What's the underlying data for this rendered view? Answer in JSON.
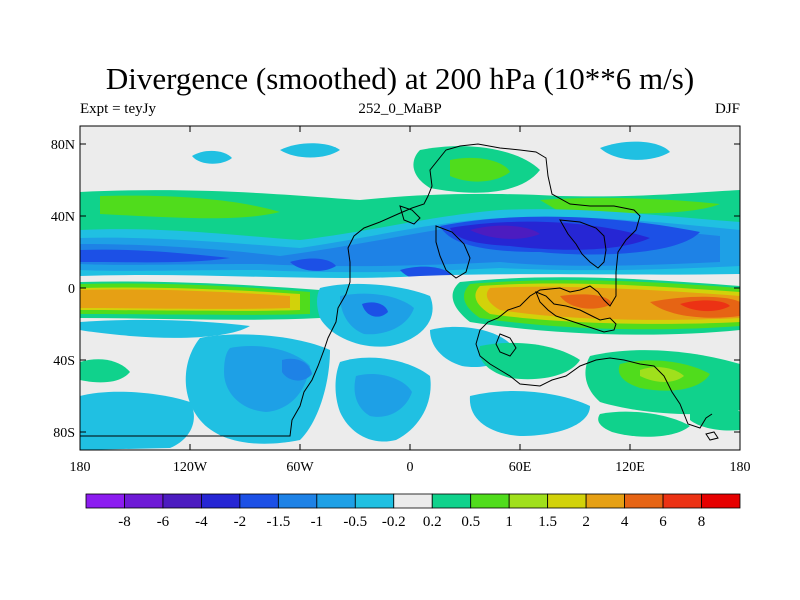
{
  "header": {
    "title": "Divergence (smoothed) at 200 hPa (10**6 m/s)",
    "left_label": "Expt = teyJy",
    "center_label": "252_0_MaBP",
    "right_label": "DJF"
  },
  "axes": {
    "lat_ticks": [
      {
        "label": "80N",
        "lat": 80
      },
      {
        "label": "40N",
        "lat": 40
      },
      {
        "label": "0",
        "lat": 0
      },
      {
        "label": "40S",
        "lat": -40
      },
      {
        "label": "80S",
        "lat": -80
      }
    ],
    "lon_ticks": [
      {
        "label": "180",
        "lon": -180
      },
      {
        "label": "120W",
        "lon": -120
      },
      {
        "label": "60W",
        "lon": -60
      },
      {
        "label": "0",
        "lon": 0
      },
      {
        "label": "60E",
        "lon": 60
      },
      {
        "label": "120E",
        "lon": 120
      },
      {
        "label": "180",
        "lon": 180
      }
    ],
    "lon_range": [
      -180,
      180
    ],
    "lat_range": [
      -90,
      90
    ]
  },
  "colorbar": {
    "colors": [
      "#8c1cf0",
      "#6e1ad6",
      "#4c1cc0",
      "#2626d4",
      "#1c50e6",
      "#1e82e6",
      "#1ea0e6",
      "#20c0e2",
      "#ececec",
      "#10d28c",
      "#50dc1c",
      "#a0e01c",
      "#d2d20a",
      "#e6a014",
      "#e66414",
      "#ec3214",
      "#e60000"
    ],
    "labels": [
      "-8",
      "-6",
      "-4",
      "-2",
      "-1.5",
      "-1",
      "-0.5",
      "-0.2",
      "0.2",
      "0.5",
      "1",
      "1.5",
      "2",
      "4",
      "6",
      "8"
    ]
  }
}
